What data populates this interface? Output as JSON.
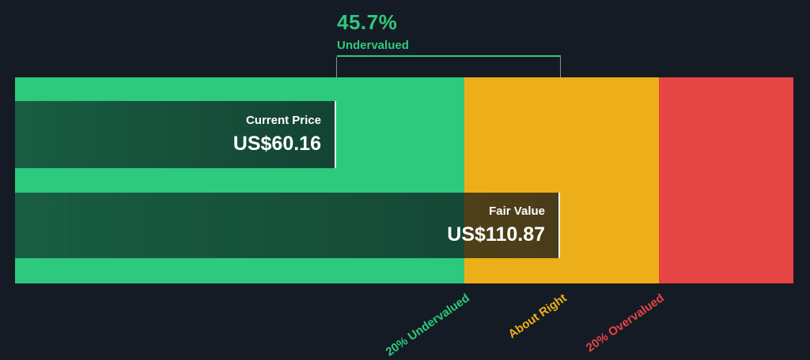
{
  "colors": {
    "background": "#151b24",
    "green": "#2dc97c",
    "amber": "#edaf19",
    "red": "#e54545"
  },
  "annotation": {
    "percent": "45.7%",
    "label": "Undervalued"
  },
  "bars": {
    "current_price": {
      "label": "Current Price",
      "value": "US$60.16"
    },
    "fair_value": {
      "label": "Fair Value",
      "value": "US$110.87"
    }
  },
  "zone_labels": [
    {
      "label": "20% Undervalued"
    },
    {
      "label": "About Right"
    },
    {
      "label": "20% Overvalued"
    }
  ],
  "chart_data": {
    "type": "bar",
    "orientation": "horizontal",
    "series": [
      {
        "name": "Current Price",
        "value": 60.16,
        "unit": "US$"
      },
      {
        "name": "Fair Value",
        "value": 110.87,
        "unit": "US$"
      }
    ],
    "annotation": {
      "percent": 45.7,
      "label": "Undervalued"
    },
    "zones": [
      {
        "label": "20% Undervalued",
        "color": "#2dc97c"
      },
      {
        "label": "About Right",
        "color": "#edaf19"
      },
      {
        "label": "20% Overvalued",
        "color": "#e54545"
      }
    ],
    "legend_position": "none",
    "grid": false
  }
}
